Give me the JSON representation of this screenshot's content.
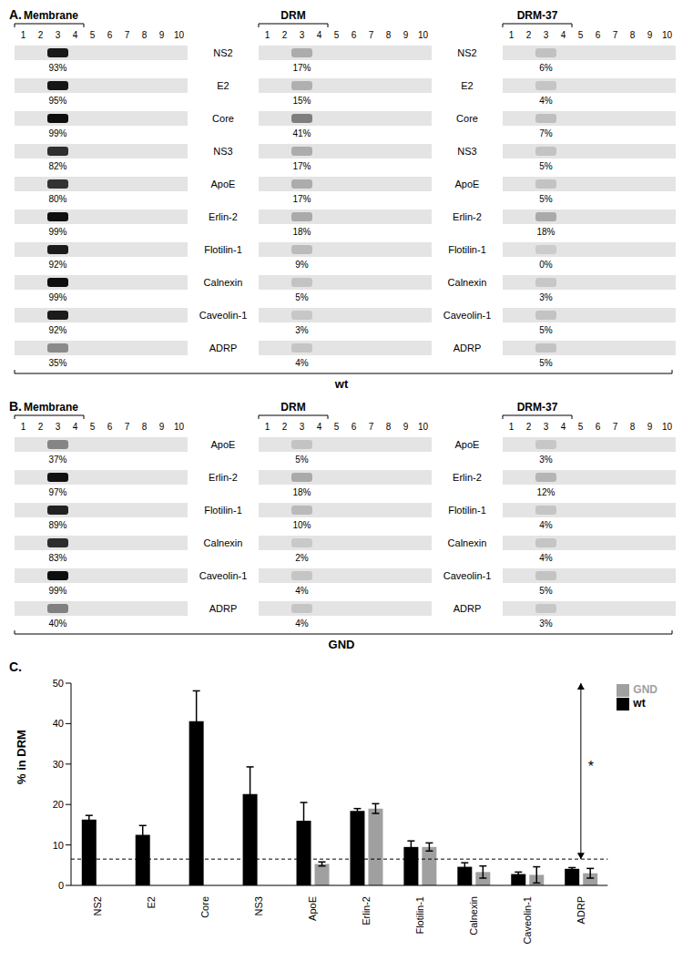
{
  "blots": {
    "sections": [
      "Membrane",
      "DRM",
      "DRM-37"
    ],
    "lanes": [
      1,
      2,
      3,
      4,
      5,
      6,
      7,
      8,
      9,
      10
    ],
    "panels": [
      {
        "label": "A.",
        "condition": "wt",
        "rows": [
          {
            "protein": "NS2",
            "values": [
              93,
              17,
              6
            ],
            "value_labels": [
              "93%",
              "17%",
              "6%"
            ]
          },
          {
            "protein": "E2",
            "values": [
              95,
              15,
              4
            ],
            "value_labels": [
              "95%",
              "15%",
              "4%"
            ]
          },
          {
            "protein": "Core",
            "values": [
              99,
              41,
              7
            ],
            "value_labels": [
              "99%",
              "41%",
              "7%"
            ]
          },
          {
            "protein": "NS3",
            "values": [
              82,
              17,
              5
            ],
            "value_labels": [
              "82%",
              "17%",
              "5%"
            ]
          },
          {
            "protein": "ApoE",
            "values": [
              80,
              17,
              5
            ],
            "value_labels": [
              "80%",
              "17%",
              "5%"
            ]
          },
          {
            "protein": "Erlin-2",
            "values": [
              99,
              18,
              18
            ],
            "value_labels": [
              "99%",
              "18%",
              "18%"
            ]
          },
          {
            "protein": "Flotilin-1",
            "values": [
              92,
              9,
              0
            ],
            "value_labels": [
              "92%",
              "9%",
              "0%"
            ]
          },
          {
            "protein": "Calnexin",
            "values": [
              99,
              5,
              3
            ],
            "value_labels": [
              "99%",
              "5%",
              "3%"
            ]
          },
          {
            "protein": "Caveolin-1",
            "values": [
              92,
              3,
              5
            ],
            "value_labels": [
              "92%",
              "3%",
              "5%"
            ]
          },
          {
            "protein": "ADRP",
            "values": [
              35,
              4,
              5
            ],
            "value_labels": [
              "35%",
              "4%",
              "5%"
            ]
          }
        ]
      },
      {
        "label": "B.",
        "condition": "GND",
        "rows": [
          {
            "protein": "ApoE",
            "values": [
              37,
              5,
              3
            ],
            "value_labels": [
              "37%",
              "5%",
              "3%"
            ]
          },
          {
            "protein": "Erlin-2",
            "values": [
              97,
              18,
              12
            ],
            "value_labels": [
              "97%",
              "18%",
              "12%"
            ]
          },
          {
            "protein": "Flotilin-1",
            "values": [
              89,
              10,
              4
            ],
            "value_labels": [
              "89%",
              "10%",
              "4%"
            ]
          },
          {
            "protein": "Calnexin",
            "values": [
              83,
              2,
              4
            ],
            "value_labels": [
              "83%",
              "2%",
              "4%"
            ]
          },
          {
            "protein": "Caveolin-1",
            "values": [
              99,
              4,
              5
            ],
            "value_labels": [
              "99%",
              "4%",
              "5%"
            ]
          },
          {
            "protein": "ADRP",
            "values": [
              40,
              4,
              3
            ],
            "value_labels": [
              "40%",
              "4%",
              "3%"
            ]
          }
        ]
      }
    ]
  },
  "chart_data": {
    "type": "bar",
    "title": "C.",
    "y_label": "% in DRM",
    "categories": [
      "NS2",
      "E2",
      "Core",
      "NS3",
      "ApoE",
      "Erlin-2",
      "Flotilin-1",
      "Calnexin",
      "Caveolin-1",
      "ADRP"
    ],
    "series": [
      {
        "name": "wt",
        "color": "#000000",
        "values": [
          16.3,
          12.5,
          40.6,
          22.6,
          16.0,
          18.4,
          9.5,
          4.6,
          2.8,
          4.1
        ],
        "errors": [
          1.0,
          2.3,
          7.5,
          6.7,
          4.5,
          0.6,
          1.5,
          1.0,
          0.5,
          0.3
        ]
      },
      {
        "name": "GND",
        "color": "#a0a0a0",
        "values": [
          null,
          null,
          null,
          null,
          5.3,
          19.0,
          9.5,
          3.3,
          2.6,
          3.0
        ],
        "errors": [
          null,
          null,
          null,
          null,
          0.5,
          1.2,
          1.0,
          1.5,
          2.0,
          1.2
        ]
      }
    ],
    "ylim": [
      0,
      50
    ],
    "yticks": [
      0,
      10,
      20,
      30,
      40,
      50
    ],
    "reference_line": 6.5,
    "annotation": {
      "text": "*",
      "y_from": 6.5,
      "y_to": 50
    },
    "legend": "top-right"
  }
}
